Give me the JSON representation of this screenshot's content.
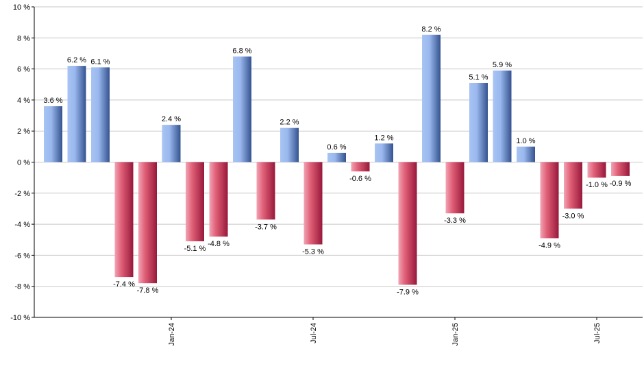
{
  "chart_data": {
    "type": "bar",
    "values": [
      3.6,
      6.2,
      6.1,
      -7.4,
      -7.8,
      2.4,
      -5.1,
      -4.8,
      6.8,
      -3.7,
      2.2,
      -5.3,
      0.6,
      -0.6,
      1.2,
      -7.9,
      8.2,
      -3.3,
      5.1,
      5.9,
      1.0,
      -4.9,
      -3.0,
      -1.0,
      -0.9
    ],
    "data_labels": [
      "3.6 %",
      "6.2 %",
      "6.1 %",
      "-7.4 %",
      "-7.8 %",
      "2.4 %",
      "-5.1 %",
      "-4.8 %",
      "6.8 %",
      "-3.7 %",
      "2.2 %",
      "-5.3 %",
      "0.6 %",
      "-0.6 %",
      "1.2 %",
      "-7.9 %",
      "8.2 %",
      "-3.3 %",
      "5.1 %",
      "5.9 %",
      "1.0 %",
      "-4.9 %",
      "-3.0 %",
      "-1.0 %",
      "-0.9 %"
    ],
    "x_tick_labels": [
      {
        "label": "Jan-24",
        "bar_index": 5
      },
      {
        "label": "Jul-24",
        "bar_index": 11
      },
      {
        "label": "Jan-25",
        "bar_index": 17
      },
      {
        "label": "Jul-25",
        "bar_index": 23
      }
    ],
    "y_ticks": [
      10,
      8,
      6,
      4,
      2,
      0,
      -2,
      -4,
      -6,
      -8,
      -10
    ],
    "y_tick_labels": [
      "10 %",
      "8 %",
      "6 %",
      "4 %",
      "2 %",
      "0 %",
      "-2 %",
      "-4 %",
      "-6 %",
      "-8 %",
      "-10 %"
    ],
    "ylim": [
      -10,
      10
    ],
    "grid": true,
    "colors": {
      "positive_light": "#a8c4f4",
      "positive_dark": "#3a5a9a",
      "negative_light": "#f0a0b0",
      "negative_dark": "#a02040",
      "grid": "#c8c8c8",
      "axis": "#000000"
    }
  }
}
